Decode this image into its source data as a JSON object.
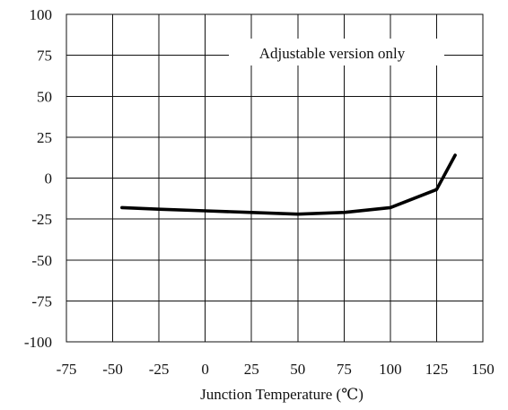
{
  "chart_data": {
    "type": "line",
    "title": "",
    "xlabel": "Junction Temperature (℃)",
    "ylabel": "",
    "annotation": "Adjustable version only",
    "xlim": [
      -75,
      150
    ],
    "ylim": [
      -100,
      100
    ],
    "xticks": [
      -75,
      -50,
      -25,
      0,
      25,
      50,
      75,
      100,
      125,
      150
    ],
    "yticks": [
      100,
      75,
      50,
      25,
      0,
      -25,
      -50,
      -75,
      -100
    ],
    "grid": true,
    "line_color": "#000000",
    "series": [
      {
        "x": [
          -45,
          -25,
          0,
          25,
          50,
          75,
          100,
          125,
          135
        ],
        "y": [
          -18,
          -19,
          -20,
          -21,
          -22,
          -21,
          -18,
          -7,
          14
        ]
      }
    ]
  }
}
